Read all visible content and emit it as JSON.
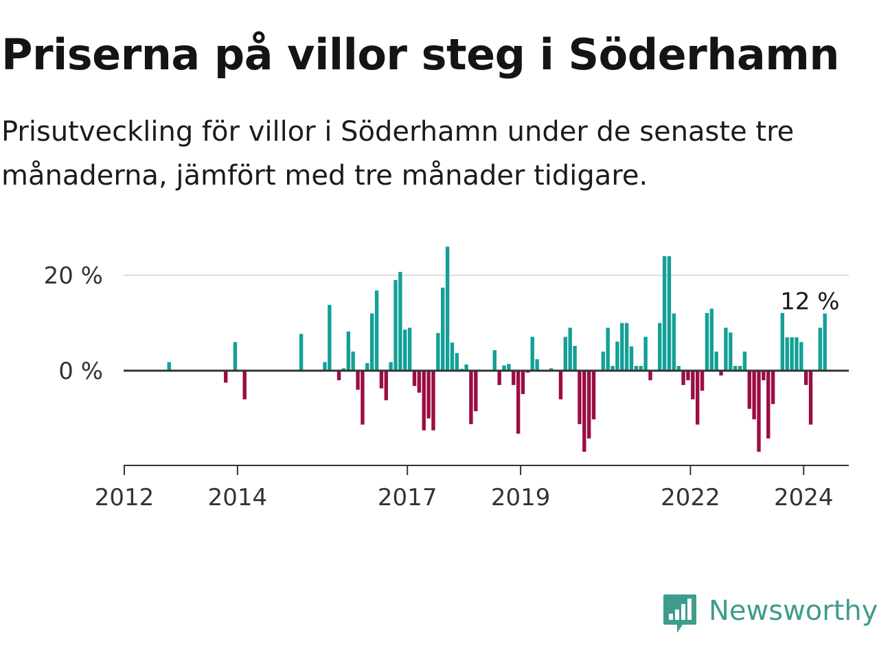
{
  "title": "Priserna på villor steg i Söderhamn",
  "subtitle": "Prisutveckling för villor i Söderhamn under de senaste tre månaderna, jämfört med tre månader tidigare.",
  "brand": {
    "name": "Newsworthy",
    "color": "#3e9c8d",
    "icon": "newsworthy-logo-icon"
  },
  "colors": {
    "positive": "#14a096",
    "negative": "#9b0d45",
    "zero_line": "#333333",
    "grid": "#dddddd"
  },
  "chart_data": {
    "type": "bar",
    "x_unit": "month",
    "x_start": "2012-01",
    "x_ticks": [
      "2012",
      "2014",
      "2017",
      "2019",
      "2022",
      "2024"
    ],
    "y_ticks": [
      "0 %",
      "20 %"
    ],
    "y_tick_values": [
      0,
      20
    ],
    "ylim": [
      -20,
      26
    ],
    "grid": true,
    "annotation": {
      "text": "12 %",
      "x": "2024-02",
      "y": 12
    },
    "values": [
      0,
      0,
      0,
      0,
      0,
      0,
      0,
      0,
      0,
      1.8,
      0,
      0,
      0,
      0,
      0,
      0,
      0,
      0,
      0,
      0,
      0,
      -2.5,
      0,
      6,
      0,
      -6,
      0,
      0,
      0,
      0,
      0,
      0,
      0,
      0,
      0,
      0,
      0,
      7.7,
      0,
      0,
      0,
      0,
      1.8,
      13.8,
      0,
      -2,
      0.5,
      8.2,
      4,
      -4,
      -11.3,
      1.6,
      12,
      16.8,
      -3.7,
      -6.2,
      1.8,
      19,
      20.7,
      8.6,
      9,
      -3.2,
      -4.6,
      -12.5,
      -10,
      -12.5,
      7.9,
      17.4,
      26,
      5.9,
      3.7,
      0.4,
      1.3,
      -11.2,
      -8.5,
      0,
      0,
      0,
      4.3,
      -3,
      1.1,
      1.4,
      -3,
      -13.2,
      -4.9,
      -0.4,
      7.1,
      2.4,
      0,
      0,
      0.5,
      0,
      -6,
      7.1,
      9,
      5.2,
      -11.2,
      -17,
      -14.2,
      -10.2,
      0,
      4,
      9,
      1,
      6.1,
      10,
      10,
      5.1,
      1,
      1,
      7.1,
      -2,
      0,
      10,
      24,
      24,
      12,
      1,
      -3,
      -2,
      -6,
      -11.3,
      -4.2,
      12.1,
      13,
      4,
      -1,
      9,
      8,
      1,
      1,
      4,
      -8,
      -10.2,
      -17,
      -2,
      -14.2,
      -7,
      0,
      12.1,
      7,
      7,
      7,
      6,
      -3,
      -11.3,
      0,
      9,
      12
    ]
  }
}
